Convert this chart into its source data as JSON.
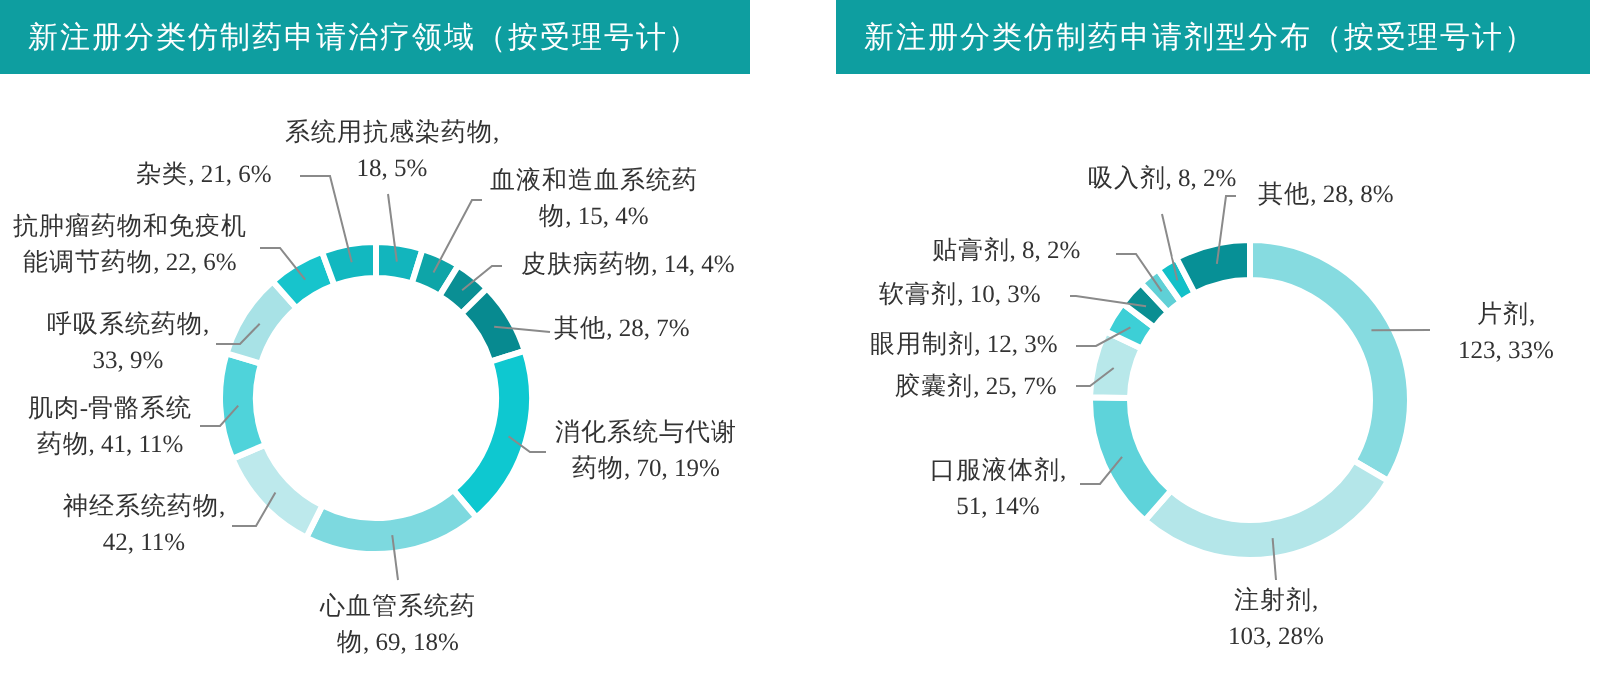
{
  "chart_data": [
    {
      "type": "donut",
      "title": "新注册分类仿制药申请治疗领域（按受理号计）",
      "categories": [
        "系统用抗感染药物",
        "血液和造血系统药物",
        "皮肤病药物",
        "其他",
        "消化系统与代谢药物",
        "心血管系统药物",
        "神经系统药物",
        "肌肉-骨骼系统药物",
        "呼吸系统药物",
        "抗肿瘤药物和免疫机能调节药物",
        "杂类"
      ],
      "values": [
        18,
        15,
        14,
        28,
        70,
        69,
        42,
        41,
        33,
        22,
        21
      ],
      "value_labels": [
        ", 18, 5%",
        ", 15, 4%",
        ", 14, 4%",
        ", 28, 7%",
        ", 70, 19%",
        ", 69, 18%",
        ", 42, 11%",
        ", 41, 11%",
        ", 33, 9%",
        ", 22, 6%",
        ", 21, 6%"
      ],
      "colors": [
        "#12b5bd",
        "#0ea5a8",
        "#0a8f94",
        "#078a90",
        "#0ec8d0",
        "#7dd9df",
        "#bde9ec",
        "#4fd3da",
        "#a8e2e6",
        "#17c4cc",
        "#12b8c0"
      ]
    },
    {
      "type": "donut",
      "title": "新注册分类仿制药申请剂型分布（按受理号计）",
      "categories": [
        "片剂",
        "注射剂",
        "口服液体剂",
        "胶囊剂",
        "眼用制剂",
        "软膏剂",
        "贴膏剂",
        "吸入剂",
        "其他"
      ],
      "values": [
        123,
        103,
        51,
        25,
        12,
        10,
        8,
        8,
        28
      ],
      "value_labels": [
        ", 123, 33%",
        ", 103, 28%",
        ", 51, 14%",
        ", 25, 7%",
        ", 12, 3%",
        ", 10, 3%",
        ", 8, 2%",
        ", 8, 2%",
        ", 28, 8%"
      ],
      "colors": [
        "#86dbe0",
        "#b4e6e9",
        "#5ed3da",
        "#b8e8ea",
        "#3dcfd6",
        "#0a8e92",
        "#5fd0d6",
        "#12c0c8",
        "#079096"
      ]
    }
  ]
}
